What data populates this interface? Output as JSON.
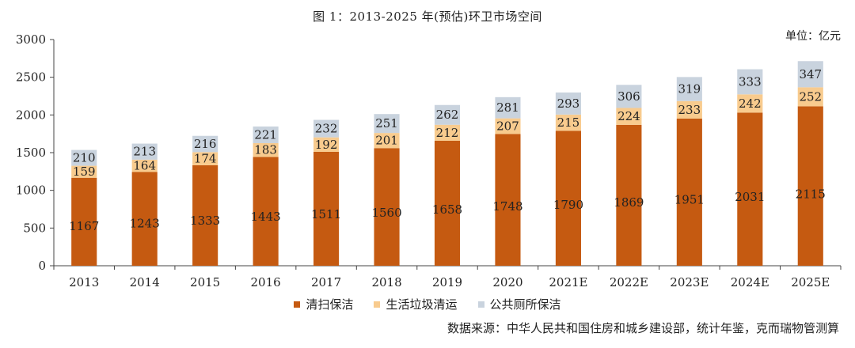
{
  "title": "图 1：2013-2025 年(预估)环卫市场空间",
  "unit": "单位：亿元",
  "source": "数据来源：中华人民共和国住房和城乡建设部，统计年鉴，克而瑞物管测算",
  "chart_data": {
    "type": "bar",
    "stacked": true,
    "categories": [
      "2013",
      "2014",
      "2015",
      "2016",
      "2017",
      "2018",
      "2019",
      "2020",
      "2021E",
      "2022E",
      "2023E",
      "2024E",
      "2025E"
    ],
    "series": [
      {
        "name": "清扫保洁",
        "color": "#C55A11",
        "values": [
          1167,
          1243,
          1333,
          1443,
          1511,
          1560,
          1658,
          1748,
          1790,
          1869,
          1951,
          2031,
          2115
        ]
      },
      {
        "name": "生活垃圾清运",
        "color": "#F8CB8E",
        "values": [
          159,
          164,
          174,
          183,
          192,
          201,
          212,
          207,
          215,
          224,
          233,
          242,
          252
        ]
      },
      {
        "name": "公共厕所保洁",
        "color": "#C9D3DE",
        "values": [
          210,
          213,
          216,
          221,
          232,
          251,
          262,
          281,
          293,
          306,
          319,
          333,
          347
        ]
      }
    ],
    "yticks": [
      0,
      500,
      1000,
      1500,
      2000,
      2500,
      3000
    ],
    "ylim": [
      0,
      3000
    ],
    "grid": false,
    "legend_position": "bottom"
  }
}
